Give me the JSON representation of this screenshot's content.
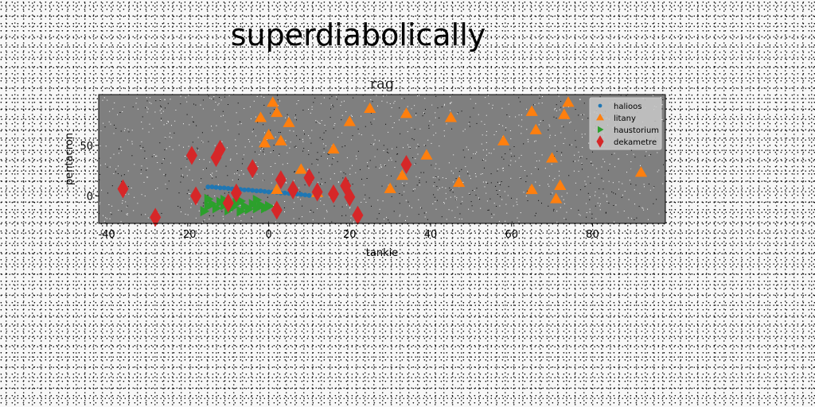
{
  "suptitle": "superdiabolically",
  "chart_data": {
    "type": "scatter",
    "title": "rag",
    "xlabel": "tankie",
    "ylabel": "pentacron",
    "xlim": [
      -42,
      98
    ],
    "ylim": [
      -27,
      100
    ],
    "xticks": [
      -40,
      -20,
      0,
      20,
      40,
      60,
      80
    ],
    "yticks": [
      0,
      50
    ],
    "grid": false,
    "legend_position": "top-right",
    "series": [
      {
        "name": "halioos",
        "marker": "circle",
        "color": "#1f77b4",
        "points": [
          [
            -15,
            9
          ],
          [
            -14,
            9
          ],
          [
            -13,
            8.5
          ],
          [
            -12,
            8
          ],
          [
            -11,
            8
          ],
          [
            -10,
            7.5
          ],
          [
            -9,
            7
          ],
          [
            -8,
            7
          ],
          [
            -7,
            6.5
          ],
          [
            -6,
            6
          ],
          [
            -5,
            6
          ],
          [
            -4,
            5.5
          ],
          [
            -3,
            5
          ],
          [
            -2,
            5
          ],
          [
            -1,
            4.5
          ],
          [
            0,
            4
          ],
          [
            1,
            4
          ],
          [
            2,
            3.5
          ],
          [
            3,
            3
          ],
          [
            4,
            3
          ],
          [
            5,
            2.5
          ],
          [
            6,
            2
          ],
          [
            7,
            2
          ],
          [
            8,
            1.5
          ],
          [
            9,
            1
          ],
          [
            10,
            0.5
          ]
        ]
      },
      {
        "name": "litany",
        "marker": "triangle-up",
        "color": "#ff7f0e",
        "points": [
          [
            1,
            92
          ],
          [
            2,
            82
          ],
          [
            -2,
            77
          ],
          [
            5,
            72
          ],
          [
            20,
            73
          ],
          [
            25,
            86
          ],
          [
            34,
            81
          ],
          [
            45,
            77
          ],
          [
            65,
            83
          ],
          [
            66,
            65
          ],
          [
            73,
            80
          ],
          [
            74,
            92
          ],
          [
            0,
            60
          ],
          [
            -1,
            52
          ],
          [
            3,
            54
          ],
          [
            16,
            46
          ],
          [
            39,
            40
          ],
          [
            58,
            54
          ],
          [
            70,
            37
          ],
          [
            92,
            23
          ],
          [
            8,
            26
          ],
          [
            33,
            20
          ],
          [
            47,
            13
          ],
          [
            30,
            7
          ],
          [
            2,
            6
          ],
          [
            65,
            6
          ],
          [
            72,
            10
          ],
          [
            71,
            -3
          ],
          [
            12,
            3
          ]
        ]
      },
      {
        "name": "haustorium",
        "marker": "triangle-right",
        "color": "#2ca02c",
        "points": [
          [
            -16,
            -15
          ],
          [
            -15,
            -10
          ],
          [
            -14,
            -8
          ],
          [
            -13,
            -12
          ],
          [
            -12,
            -6
          ],
          [
            -11,
            -9
          ],
          [
            -10,
            -14
          ],
          [
            -9,
            -11
          ],
          [
            -8,
            -7
          ],
          [
            -7,
            -5
          ],
          [
            -6,
            -10
          ],
          [
            -5,
            -13
          ],
          [
            -4,
            -8
          ],
          [
            -3,
            -4
          ],
          [
            -2,
            -9
          ],
          [
            -1,
            -12
          ],
          [
            0,
            -10
          ],
          [
            -15,
            -3
          ],
          [
            -11,
            -4
          ],
          [
            -7,
            -15
          ],
          [
            -3,
            -12
          ]
        ]
      },
      {
        "name": "dekametre",
        "marker": "thin-diamond",
        "color": "#d62728",
        "points": [
          [
            -36,
            7
          ],
          [
            -28,
            -21
          ],
          [
            -19,
            40
          ],
          [
            -18,
            0
          ],
          [
            -13,
            38
          ],
          [
            -12,
            46
          ],
          [
            -10,
            -7
          ],
          [
            -8,
            3
          ],
          [
            -4,
            27
          ],
          [
            2,
            -14
          ],
          [
            3,
            16
          ],
          [
            6,
            6
          ],
          [
            10,
            18
          ],
          [
            12,
            4
          ],
          [
            16,
            2
          ],
          [
            19,
            10
          ],
          [
            20,
            -1
          ],
          [
            22,
            -19
          ],
          [
            34,
            31
          ]
        ]
      }
    ]
  }
}
